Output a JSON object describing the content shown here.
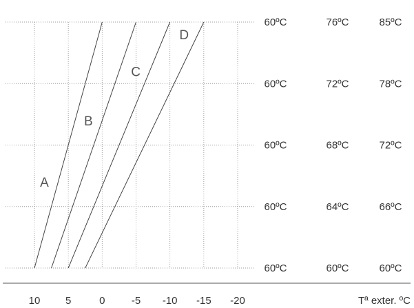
{
  "chart_data": {
    "type": "line",
    "title": "",
    "xlabel": "Tª exter.  ºC",
    "x_ticks": [
      10,
      5,
      0,
      -5,
      -10,
      -15,
      -20
    ],
    "x_range": [
      10,
      -20
    ],
    "grid": true,
    "row_temperatures": [
      [
        "60ºC",
        "76ºC",
        "85ºC"
      ],
      [
        "60ºC",
        "72ºC",
        "78ºC"
      ],
      [
        "60ºC",
        "68ºC",
        "72ºC"
      ],
      [
        "60ºC",
        "64ºC",
        "66ºC"
      ],
      [
        "60ºC",
        "60ºC",
        "60ºC"
      ]
    ],
    "y_levels": [
      4,
      3,
      2,
      1,
      0
    ],
    "series": [
      {
        "name": "A",
        "x": [
          10,
          0
        ],
        "y": [
          0,
          4
        ]
      },
      {
        "name": "B",
        "x": [
          7.5,
          -5
        ],
        "y": [
          0,
          4
        ]
      },
      {
        "name": "C",
        "x": [
          5,
          -10
        ],
        "y": [
          0,
          4
        ]
      },
      {
        "name": "D",
        "x": [
          2.5,
          -15
        ],
        "y": [
          0,
          4
        ]
      }
    ]
  }
}
